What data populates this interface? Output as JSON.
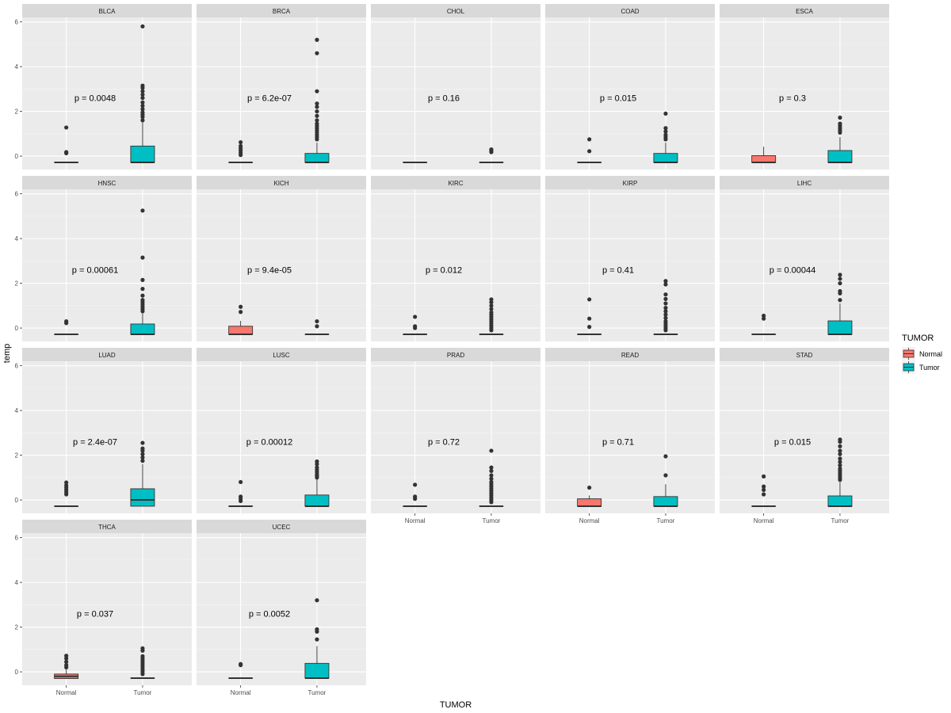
{
  "chart_data": {
    "type": "boxplot",
    "ylabel": "temp",
    "xlabel": "TUMOR",
    "categories": [
      "Normal",
      "Tumor"
    ],
    "ylim": [
      -0.6,
      6.2
    ],
    "yticks": [
      0,
      2,
      4,
      6
    ],
    "legend": {
      "title": "TUMOR",
      "position": "right",
      "items": [
        {
          "label": "Normal",
          "color": "#F8766D"
        },
        {
          "label": "Tumor",
          "color": "#00BFC4"
        }
      ]
    },
    "p_label_y": 2.6,
    "panels": [
      {
        "name": "BLCA",
        "p": "p = 0.0048",
        "normal": {
          "q1": -0.28,
          "med": -0.28,
          "q3": -0.28,
          "wlo": -0.28,
          "whi": -0.28,
          "outliers": [
            1.28,
            0.18,
            0.13
          ]
        },
        "tumor": {
          "q1": -0.28,
          "med": -0.28,
          "q3": 0.45,
          "wlo": -0.28,
          "whi": 1.5,
          "outliers": [
            1.6,
            1.75,
            1.85,
            1.95,
            2.1,
            2.25,
            2.4,
            2.6,
            2.75,
            2.9,
            3.05,
            3.15,
            5.8
          ]
        }
      },
      {
        "name": "BRCA",
        "p": "p = 6.2e-07",
        "normal": {
          "q1": -0.28,
          "med": -0.28,
          "q3": -0.28,
          "wlo": -0.28,
          "whi": -0.28,
          "outliers": [
            0.05,
            0.15,
            0.25,
            0.35,
            0.45,
            0.62
          ]
        },
        "tumor": {
          "q1": -0.28,
          "med": -0.28,
          "q3": 0.12,
          "wlo": -0.28,
          "whi": 0.6,
          "outliers": [
            0.75,
            0.85,
            0.95,
            1.05,
            1.15,
            1.25,
            1.35,
            1.45,
            1.6,
            1.8,
            2.0,
            2.2,
            2.35,
            2.9,
            4.6,
            5.2
          ]
        }
      },
      {
        "name": "CHOL",
        "p": "p = 0.16",
        "normal": {
          "q1": -0.28,
          "med": -0.28,
          "q3": -0.28,
          "wlo": -0.28,
          "whi": -0.28,
          "outliers": []
        },
        "tumor": {
          "q1": -0.28,
          "med": -0.28,
          "q3": -0.28,
          "wlo": -0.28,
          "whi": -0.28,
          "outliers": [
            0.18,
            0.24,
            0.3
          ]
        }
      },
      {
        "name": "COAD",
        "p": "p = 0.015",
        "normal": {
          "q1": -0.28,
          "med": -0.28,
          "q3": -0.28,
          "wlo": -0.28,
          "whi": -0.28,
          "outliers": [
            0.22,
            0.75
          ]
        },
        "tumor": {
          "q1": -0.28,
          "med": -0.28,
          "q3": 0.12,
          "wlo": -0.28,
          "whi": 0.6,
          "outliers": [
            0.75,
            0.85,
            0.95,
            1.1,
            1.25,
            1.9
          ]
        }
      },
      {
        "name": "ESCA",
        "p": "p = 0.3",
        "normal": {
          "q1": -0.28,
          "med": -0.28,
          "q3": 0.02,
          "wlo": -0.28,
          "whi": 0.42,
          "outliers": []
        },
        "tumor": {
          "q1": -0.28,
          "med": -0.28,
          "q3": 0.25,
          "wlo": -0.28,
          "whi": 0.85,
          "outliers": [
            1.05,
            1.15,
            1.25,
            1.35,
            1.45,
            1.72
          ]
        }
      },
      {
        "name": "HNSC",
        "p": "p = 0.00061",
        "normal": {
          "q1": -0.28,
          "med": -0.28,
          "q3": -0.28,
          "wlo": -0.28,
          "whi": -0.28,
          "outliers": [
            0.22,
            0.3
          ]
        },
        "tumor": {
          "q1": -0.28,
          "med": -0.28,
          "q3": 0.18,
          "wlo": -0.28,
          "whi": 0.65,
          "outliers": [
            0.75,
            0.85,
            0.95,
            1.05,
            1.15,
            1.25,
            1.45,
            1.75,
            2.15,
            3.15,
            5.25
          ]
        }
      },
      {
        "name": "KICH",
        "p": "p = 9.4e-05",
        "normal": {
          "q1": -0.28,
          "med": -0.28,
          "q3": 0.08,
          "wlo": -0.28,
          "whi": 0.32,
          "outliers": [
            0.72,
            0.95
          ]
        },
        "tumor": {
          "q1": -0.28,
          "med": -0.28,
          "q3": -0.28,
          "wlo": -0.28,
          "whi": -0.28,
          "outliers": [
            0.08,
            0.3
          ]
        }
      },
      {
        "name": "KIRC",
        "p": "p = 0.012",
        "normal": {
          "q1": -0.28,
          "med": -0.28,
          "q3": -0.28,
          "wlo": -0.28,
          "whi": -0.28,
          "outliers": [
            0.0,
            0.08,
            0.5
          ]
        },
        "tumor": {
          "q1": -0.28,
          "med": -0.28,
          "q3": -0.28,
          "wlo": -0.28,
          "whi": -0.28,
          "outliers": [
            -0.1,
            0.0,
            0.1,
            0.2,
            0.3,
            0.4,
            0.5,
            0.6,
            0.7,
            0.85,
            1.0,
            1.15,
            1.28
          ]
        }
      },
      {
        "name": "KIRP",
        "p": "p = 0.41",
        "normal": {
          "q1": -0.28,
          "med": -0.28,
          "q3": -0.28,
          "wlo": -0.28,
          "whi": -0.28,
          "outliers": [
            0.05,
            0.42,
            1.28
          ]
        },
        "tumor": {
          "q1": -0.28,
          "med": -0.28,
          "q3": -0.28,
          "wlo": -0.28,
          "whi": -0.28,
          "outliers": [
            -0.1,
            0.0,
            0.1,
            0.2,
            0.3,
            0.45,
            0.6,
            0.75,
            0.9,
            1.1,
            1.3,
            1.5,
            1.95,
            2.1
          ]
        }
      },
      {
        "name": "LIHC",
        "p": "p = 0.00044",
        "normal": {
          "q1": -0.28,
          "med": -0.28,
          "q3": -0.28,
          "wlo": -0.28,
          "whi": -0.28,
          "outliers": [
            0.42,
            0.55
          ]
        },
        "tumor": {
          "q1": -0.28,
          "med": -0.28,
          "q3": 0.32,
          "wlo": -0.28,
          "whi": 1.1,
          "outliers": [
            1.25,
            1.55,
            1.65,
            2.0,
            2.2,
            2.38
          ]
        }
      },
      {
        "name": "LUAD",
        "p": "p = 2.4e-07",
        "normal": {
          "q1": -0.28,
          "med": -0.28,
          "q3": -0.28,
          "wlo": -0.28,
          "whi": -0.28,
          "outliers": [
            0.25,
            0.35,
            0.45,
            0.55,
            0.65,
            0.78
          ]
        },
        "tumor": {
          "q1": -0.28,
          "med": 0.0,
          "q3": 0.5,
          "wlo": -0.28,
          "whi": 1.6,
          "outliers": [
            1.75,
            1.9,
            2.05,
            2.2,
            2.3,
            2.55
          ]
        }
      },
      {
        "name": "LUSC",
        "p": "p = 0.00012",
        "normal": {
          "q1": -0.28,
          "med": -0.28,
          "q3": -0.28,
          "wlo": -0.28,
          "whi": -0.28,
          "outliers": [
            -0.05,
            0.05,
            0.15,
            0.8
          ]
        },
        "tumor": {
          "q1": -0.28,
          "med": -0.28,
          "q3": 0.22,
          "wlo": -0.28,
          "whi": 0.95,
          "outliers": [
            1.0,
            1.08,
            1.15,
            1.25,
            1.35,
            1.45,
            1.6,
            1.72
          ]
        }
      },
      {
        "name": "PRAD",
        "p": "p = 0.72",
        "normal": {
          "q1": -0.28,
          "med": -0.28,
          "q3": -0.28,
          "wlo": -0.28,
          "whi": -0.28,
          "outliers": [
            0.05,
            0.15,
            0.68
          ]
        },
        "tumor": {
          "q1": -0.28,
          "med": -0.28,
          "q3": -0.28,
          "wlo": -0.28,
          "whi": -0.28,
          "outliers": [
            -0.1,
            0.0,
            0.1,
            0.2,
            0.3,
            0.4,
            0.5,
            0.6,
            0.7,
            0.8,
            0.95,
            1.1,
            1.3,
            1.45,
            2.2
          ]
        }
      },
      {
        "name": "READ",
        "p": "p = 0.71",
        "normal": {
          "q1": -0.28,
          "med": -0.28,
          "q3": 0.05,
          "wlo": -0.28,
          "whi": 0.2,
          "outliers": [
            0.55
          ]
        },
        "tumor": {
          "q1": -0.28,
          "med": -0.28,
          "q3": 0.15,
          "wlo": -0.28,
          "whi": 0.7,
          "outliers": [
            1.1,
            1.95
          ]
        }
      },
      {
        "name": "STAD",
        "p": "p = 0.015",
        "normal": {
          "q1": -0.28,
          "med": -0.28,
          "q3": -0.28,
          "wlo": -0.28,
          "whi": -0.28,
          "outliers": [
            0.25,
            0.45,
            0.6,
            1.05
          ]
        },
        "tumor": {
          "q1": -0.28,
          "med": -0.28,
          "q3": 0.18,
          "wlo": -0.28,
          "whi": 0.8,
          "outliers": [
            0.9,
            1.0,
            1.1,
            1.2,
            1.3,
            1.4,
            1.55,
            1.7,
            1.85,
            2.05,
            2.2,
            2.4,
            2.6,
            2.7
          ]
        }
      },
      {
        "name": "THCA",
        "p": "p = 0.037",
        "normal": {
          "q1": -0.3,
          "med": -0.2,
          "q3": -0.1,
          "wlo": -0.3,
          "whi": 0.1,
          "outliers": [
            0.2,
            0.3,
            0.45,
            0.6,
            0.72
          ]
        },
        "tumor": {
          "q1": -0.28,
          "med": -0.28,
          "q3": -0.28,
          "wlo": -0.28,
          "whi": -0.28,
          "outliers": [
            -0.1,
            0.0,
            0.1,
            0.2,
            0.3,
            0.4,
            0.5,
            0.6,
            0.7,
            0.95,
            1.05
          ]
        }
      },
      {
        "name": "UCEC",
        "p": "p = 0.0052",
        "normal": {
          "q1": -0.28,
          "med": -0.28,
          "q3": -0.28,
          "wlo": -0.28,
          "whi": -0.28,
          "outliers": [
            0.3,
            0.35
          ]
        },
        "tumor": {
          "q1": -0.28,
          "med": -0.28,
          "q3": 0.38,
          "wlo": -0.28,
          "whi": 1.15,
          "outliers": [
            1.45,
            1.8,
            1.9,
            3.2
          ]
        }
      }
    ]
  }
}
